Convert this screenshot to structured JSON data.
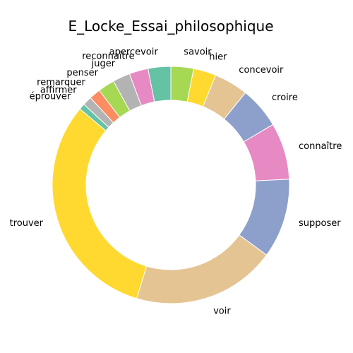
{
  "chart_data": {
    "type": "pie",
    "style": "donut",
    "title": "E_Locke_Essai_philosophique",
    "start_angle_deg": 90,
    "direction": "clockwise",
    "slices": [
      {
        "label": "savoir",
        "value": 3.0,
        "color": "#a6d854"
      },
      {
        "label": "hier",
        "value": 3.0,
        "color": "#ffd92f"
      },
      {
        "label": "concevoir",
        "value": 4.5,
        "color": "#e5c494"
      },
      {
        "label": "croire",
        "value": 5.5,
        "color": "#8da0cb"
      },
      {
        "label": "connaître",
        "value": 7.5,
        "color": "#e78ac3"
      },
      {
        "label": "supposer",
        "value": 10.5,
        "color": "#8da0cb"
      },
      {
        "label": "voir",
        "value": 19.0,
        "color": "#e5c494"
      },
      {
        "label": "trouver",
        "value": 30.5,
        "color": "#ffd92f"
      },
      {
        "label": "éprouver",
        "value": 0.8,
        "color": "#66c2a5"
      },
      {
        "label": "affirmer",
        "value": 1.2,
        "color": "#b3b3b3"
      },
      {
        "label": "remarquer",
        "value": 1.5,
        "color": "#fc8d62"
      },
      {
        "label": "penser",
        "value": 2.2,
        "color": "#a6d854"
      },
      {
        "label": "juger",
        "value": 2.3,
        "color": "#b3b3b3"
      },
      {
        "label": "reconnaître",
        "value": 2.5,
        "color": "#e78ac3"
      },
      {
        "label": "apercevoir",
        "value": 3.0,
        "color": "#66c2a5"
      }
    ]
  }
}
